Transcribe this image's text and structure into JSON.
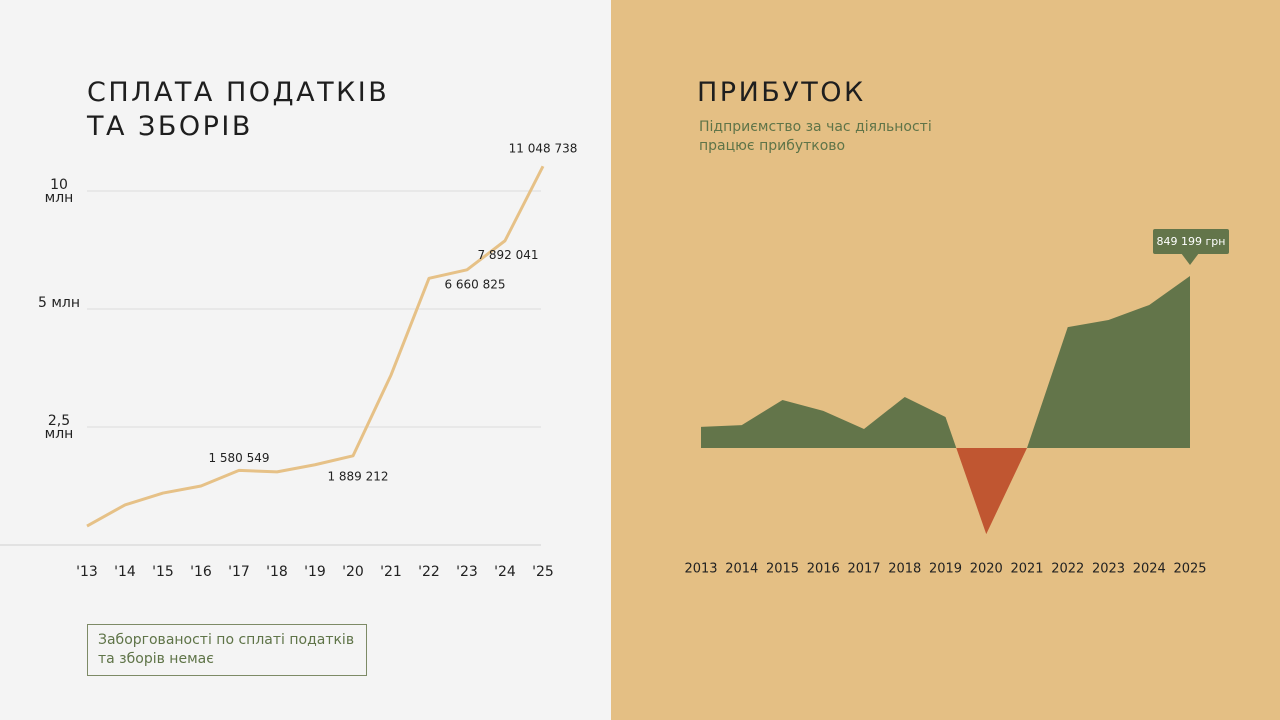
{
  "chart_data": [
    {
      "type": "line",
      "title": "СПЛАТА ПОДАТКІВ\nТА ЗБОРІВ",
      "categories": [
        "'13",
        "'14",
        "'15",
        "'16",
        "'17",
        "'18",
        "'19",
        "'20",
        "'21",
        "'22",
        "'23",
        "'24",
        "'25"
      ],
      "values": [
        400000,
        850000,
        1100000,
        1250000,
        1580549,
        1550000,
        1700000,
        1889212,
        3600000,
        6300000,
        6660825,
        7892041,
        11048738
      ],
      "value_labels": [
        null,
        null,
        null,
        null,
        "1 580 549",
        null,
        null,
        "1 889 212",
        null,
        null,
        "6 660 825",
        "7 892 041",
        "11 048 738"
      ],
      "color": "#e6c187",
      "ylim": [
        0,
        11500000
      ],
      "yticks": [
        {
          "value": 2500000,
          "label": "2,5 млн"
        },
        {
          "value": 5000000,
          "label": "5 млн"
        },
        {
          "value": 10000000,
          "label": "10 млн"
        }
      ],
      "grid": true,
      "note": "Заборгованості по сплаті податків\nта зборів немає"
    },
    {
      "type": "area",
      "title": "ПРИБУТОК",
      "subtitle": "Підприємство за час діяльності\nпрацює прибутково",
      "categories": [
        "2013",
        "2014",
        "2015",
        "2016",
        "2017",
        "2018",
        "2019",
        "2020",
        "2021",
        "2022",
        "2023",
        "2024",
        "2025"
      ],
      "values": [
        104000,
        113000,
        237000,
        183000,
        94000,
        252000,
        153000,
        -425000,
        0,
        597000,
        632000,
        706000,
        849199
      ],
      "value_labels": [
        null,
        null,
        null,
        null,
        null,
        null,
        null,
        null,
        null,
        null,
        null,
        null,
        "849 199 грн"
      ],
      "color": "#63754a",
      "negative_color": "#c05631"
    }
  ]
}
